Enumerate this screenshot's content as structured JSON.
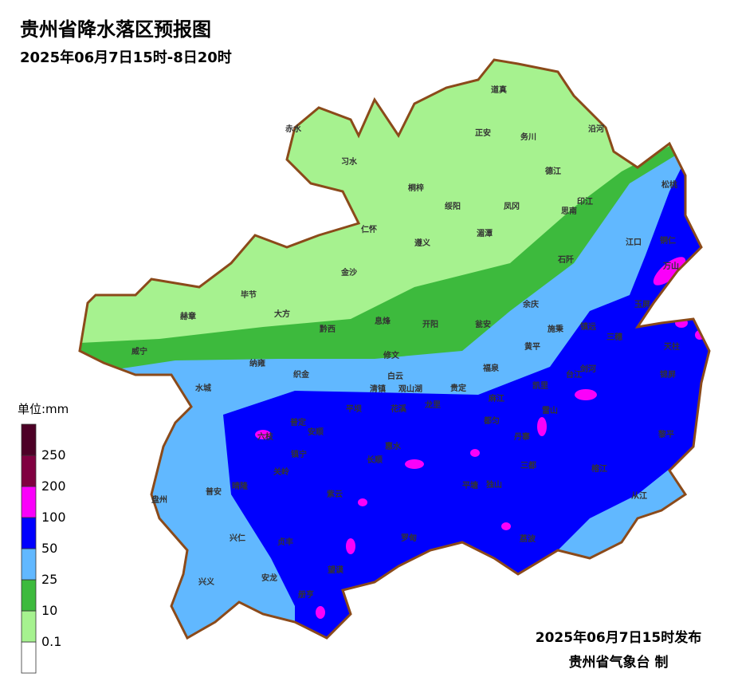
{
  "header": {
    "title": "贵州省降水落区预报图",
    "subtitle": "2025年06月7日15时-8日20时"
  },
  "legend": {
    "unit": "单位:mm",
    "bins": [
      {
        "color": "#ffffff"
      },
      {
        "color": "#a6f28f"
      },
      {
        "color": "#3dba3d"
      },
      {
        "color": "#61b8ff"
      },
      {
        "color": "#0000fe"
      },
      {
        "color": "#fa00fa"
      },
      {
        "color": "#800040"
      },
      {
        "color": "#4d0026"
      }
    ],
    "edges": [
      0.1,
      10,
      25,
      50,
      100,
      200,
      250
    ]
  },
  "places": [
    "道真",
    "赤水",
    "正安",
    "务川",
    "沿河",
    "习水",
    "桐梓",
    "德江",
    "绥阳",
    "凤冈",
    "印江",
    "松桃",
    "思南",
    "仁怀",
    "遵义",
    "湄潭",
    "江口",
    "铜仁",
    "石阡",
    "万山",
    "金沙",
    "毕节",
    "大方",
    "赫章",
    "余庆",
    "玉屏",
    "息烽",
    "开阳",
    "黔西",
    "瓮安",
    "施秉",
    "镇远",
    "三穗",
    "天柱",
    "威宁",
    "修文",
    "黄平",
    "纳雍",
    "织金",
    "白云",
    "清镇",
    "观山湖",
    "福泉",
    "台江",
    "剑河",
    "锦屏",
    "凯里",
    "水城",
    "贵定",
    "龙里",
    "麻江",
    "平坝",
    "花溪",
    "雷山",
    "都匀",
    "普定",
    "安顺",
    "丹寨",
    "黎平",
    "六枝",
    "惠水",
    "镇宁",
    "长顺",
    "关岭",
    "三都",
    "平塘",
    "独山",
    "榕江",
    "晴隆",
    "紫云",
    "普安",
    "盘州",
    "从江",
    "兴仁",
    "贞丰",
    "罗甸",
    "荔波",
    "望谟",
    "兴义",
    "安龙",
    "册亨"
  ],
  "footer": {
    "issued": "2025年06月7日15时发布",
    "agency": "贵州省气象台 制"
  }
}
